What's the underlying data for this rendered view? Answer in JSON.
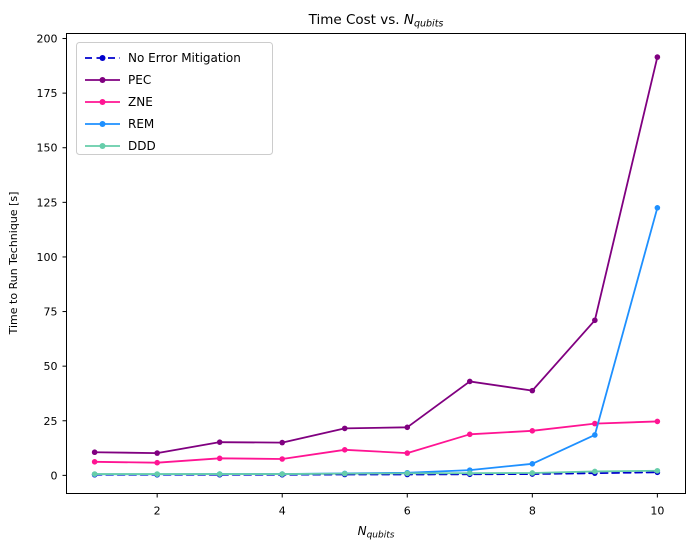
{
  "figure": {
    "background": "#ffffff",
    "spine_color": "#000000"
  },
  "chart_data": {
    "type": "line",
    "title": "Time Cost vs. N_qubits",
    "title_parts": {
      "prefix": "Time Cost vs. ",
      "var": "N",
      "sub": "qubits"
    },
    "xlabel": "N_qubits",
    "xlabel_parts": {
      "var": "N",
      "sub": "qubits"
    },
    "ylabel": "Time to Run Technique [s]",
    "grid": false,
    "legend_position": "upper left",
    "x": [
      1,
      2,
      3,
      4,
      5,
      6,
      7,
      8,
      9,
      10
    ],
    "xticks": [
      2,
      4,
      6,
      8,
      10
    ],
    "yticks": [
      0,
      25,
      50,
      75,
      100,
      125,
      150,
      175,
      200
    ],
    "xlim": [
      0.55,
      10.45
    ],
    "ylim": [
      -8.3,
      202.3
    ],
    "series": [
      {
        "name": "No Error Mitigation",
        "color": "#0000cd",
        "linestyle": "dashed",
        "marker": "circle",
        "values": [
          0.3,
          0.3,
          0.3,
          0.3,
          0.4,
          0.4,
          0.5,
          0.6,
          1.0,
          1.4
        ]
      },
      {
        "name": "PEC",
        "color": "#800080",
        "linestyle": "solid",
        "marker": "circle",
        "values": [
          10.6,
          10.2,
          15.2,
          15.0,
          21.5,
          22.0,
          43.0,
          38.8,
          71.0,
          191.5
        ]
      },
      {
        "name": "ZNE",
        "color": "#ff1493",
        "linestyle": "solid",
        "marker": "circle",
        "values": [
          6.2,
          5.8,
          7.8,
          7.5,
          11.7,
          10.2,
          18.8,
          20.4,
          23.7,
          24.7
        ]
      },
      {
        "name": "REM",
        "color": "#1e90ff",
        "linestyle": "solid",
        "marker": "circle",
        "values": [
          0.5,
          0.5,
          0.6,
          0.6,
          0.9,
          1.2,
          2.4,
          5.3,
          18.5,
          122.5
        ]
      },
      {
        "name": "DDD",
        "color": "#66cdaa",
        "linestyle": "solid",
        "marker": "circle",
        "values": [
          0.6,
          0.6,
          0.6,
          0.6,
          0.8,
          0.9,
          1.0,
          1.1,
          1.8,
          2.1
        ]
      }
    ]
  }
}
